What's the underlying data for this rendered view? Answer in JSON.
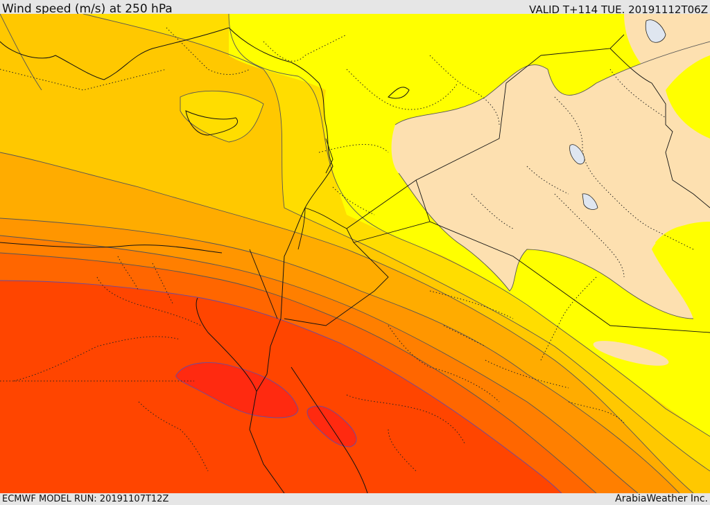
{
  "header": {
    "title": "Wind speed (m/s) at 250 hPa",
    "valid_time": "VALID T+114 TUE. 20191112T06Z"
  },
  "footer": {
    "model_run": "ECMWF MODEL RUN: 20191107T12Z",
    "credit": "ArabiaWeather Inc."
  },
  "map": {
    "field": "wind speed",
    "level": "250 hPa",
    "colors": {
      "lightest": "#fde0b0",
      "yellow": "#ffff00",
      "gold": "#ffdd00",
      "amber": "#ffc800",
      "orange_light": "#ffac00",
      "orange": "#ff9600",
      "orange_dark": "#ff7f00",
      "red_orange": "#ff6600",
      "red": "#ff4500",
      "deep_red": "#ff2a10",
      "contour": "#555555",
      "borders": "#000000",
      "water": "#cfd8e8"
    }
  }
}
